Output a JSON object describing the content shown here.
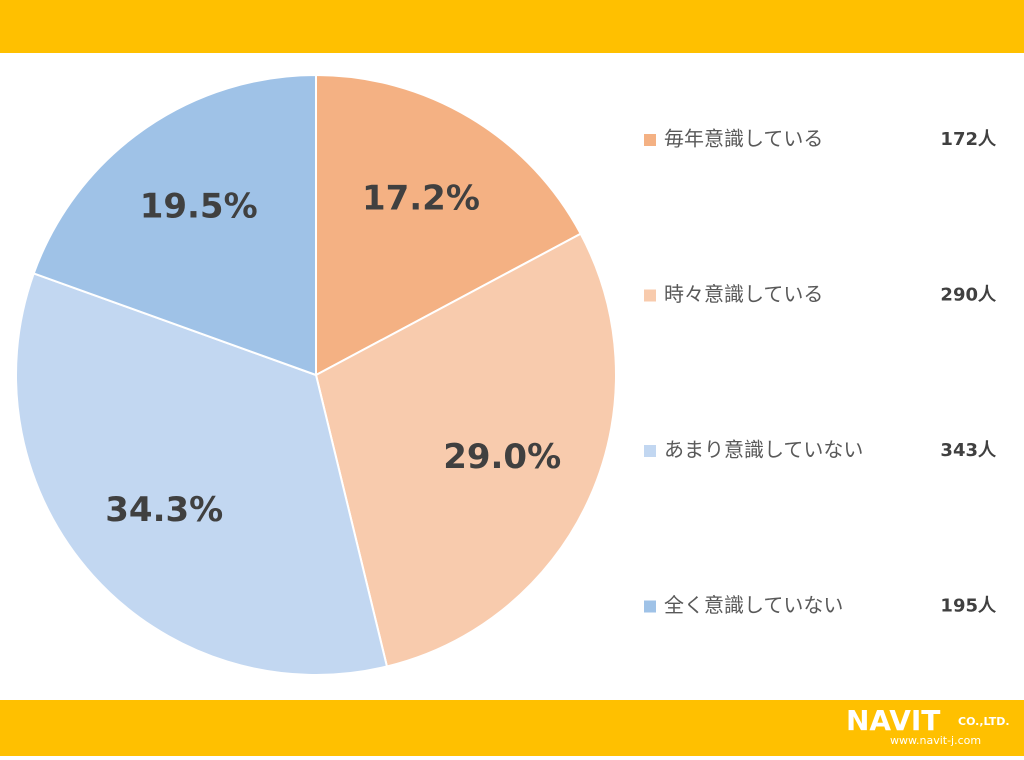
{
  "chart_data": {
    "type": "pie",
    "categories": [
      "毎年意識している",
      "時々意識している",
      "あまり意識していない",
      "全く意識していない"
    ],
    "values": [
      17.2,
      29.0,
      34.3,
      19.5
    ],
    "value_labels": [
      "17.2%",
      "29.0%",
      "34.3%",
      "19.5%"
    ],
    "counts": [
      172,
      290,
      343,
      195
    ],
    "count_labels": [
      "172人",
      "290人",
      "343人",
      "195人"
    ],
    "colors": [
      "#F4B183",
      "#F8CBAD",
      "#C2D7F1",
      "#9FC2E7"
    ]
  },
  "logo": {
    "name": "NAVIT",
    "suffix": "CO.,LTD.",
    "url": "www.navit-j.com"
  }
}
